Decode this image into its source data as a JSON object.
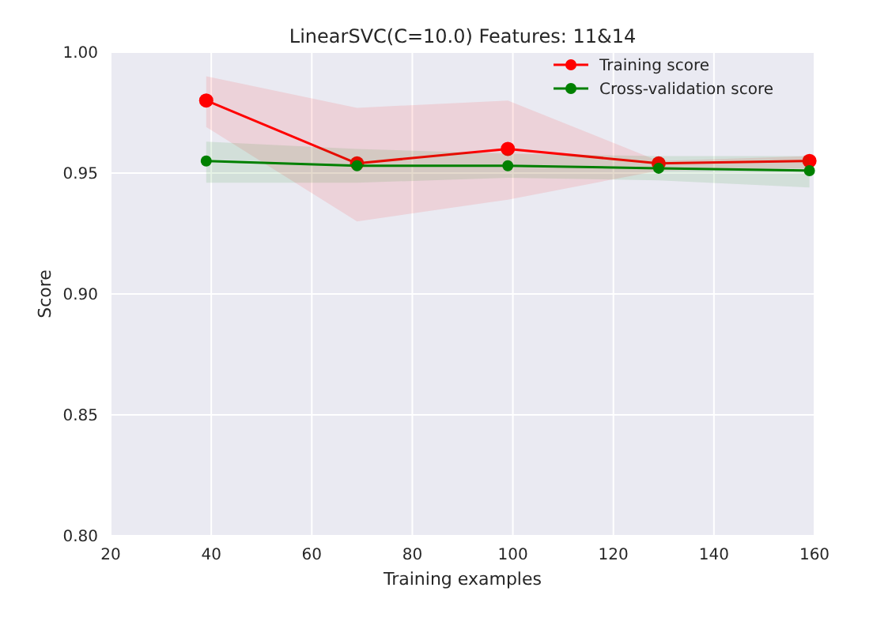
{
  "chart_data": {
    "type": "line",
    "title": "LinearSVC(C=10.0) Features: 11&14",
    "xlabel": "Training examples",
    "ylabel": "Score",
    "x": [
      39,
      69,
      99,
      129,
      159
    ],
    "series": [
      {
        "name": "Training score",
        "color": "#ff0000",
        "values": [
          0.98,
          0.954,
          0.96,
          0.954,
          0.955
        ],
        "lower": [
          0.969,
          0.93,
          0.939,
          0.951,
          0.952
        ],
        "upper": [
          0.99,
          0.977,
          0.98,
          0.955,
          0.957
        ]
      },
      {
        "name": "Cross-validation score",
        "color": "#008000",
        "values": [
          0.955,
          0.953,
          0.953,
          0.952,
          0.951
        ],
        "lower": [
          0.946,
          0.946,
          0.948,
          0.947,
          0.944
        ],
        "upper": [
          0.963,
          0.96,
          0.958,
          0.957,
          0.957
        ]
      }
    ],
    "xlim": [
      20,
      160
    ],
    "xticks": [
      20,
      40,
      60,
      80,
      100,
      120,
      140,
      160
    ],
    "ylim": [
      0.8,
      1.0
    ],
    "yticks": [
      {
        "value": 0.8,
        "label": "0.80"
      },
      {
        "value": 0.85,
        "label": "0.85"
      },
      {
        "value": 0.9,
        "label": "0.90"
      },
      {
        "value": 0.95,
        "label": "0.95"
      },
      {
        "value": 1.0,
        "label": "1.00"
      }
    ],
    "grid": true,
    "legend": "top right",
    "marker": "circle",
    "line_style": "solid"
  }
}
